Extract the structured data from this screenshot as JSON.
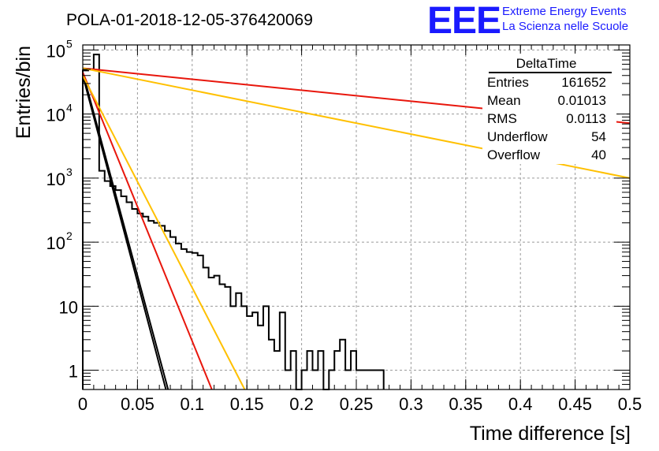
{
  "header": {
    "title": "POLA-01-2018-12-05-376420069",
    "logo": "EEE",
    "logo_line1": "Extreme Energy Events",
    "logo_line2": "La Scienza nelle Scuole"
  },
  "stats": {
    "title": "DeltaTime",
    "rows": [
      {
        "label": "Entries",
        "value": "161652"
      },
      {
        "label": "Mean",
        "value": "0.01013"
      },
      {
        "label": "RMS",
        "value": "0.0113"
      },
      {
        "label": "Underflow",
        "value": "54"
      },
      {
        "label": "Overflow",
        "value": "40"
      }
    ]
  },
  "chart_data": {
    "type": "line",
    "xlabel": "Time difference [s]",
    "ylabel": "Entries/bin",
    "xlim": [
      0,
      0.5
    ],
    "ylim": [
      0.5,
      120000
    ],
    "yscale": "log",
    "grid": true,
    "xticks": [
      "0",
      "0.05",
      "0.1",
      "0.15",
      "0.2",
      "0.25",
      "0.3",
      "0.35",
      "0.4",
      "0.45",
      "0.5"
    ],
    "yticks": [
      {
        "value": 1,
        "label": "1"
      },
      {
        "value": 10,
        "label": "10"
      },
      {
        "value": 100,
        "label": "10",
        "exp": "2"
      },
      {
        "value": 1000,
        "label": "10",
        "exp": "3"
      },
      {
        "value": 10000,
        "label": "10",
        "exp": "4"
      },
      {
        "value": 100000,
        "label": "10",
        "exp": "5"
      }
    ],
    "histogram": {
      "bin_width": 0.005,
      "color": "#000000",
      "values": [
        48000,
        50000,
        85000,
        1300,
        900,
        750,
        650,
        520,
        420,
        330,
        280,
        250,
        215,
        200,
        180,
        150,
        120,
        95,
        78,
        70,
        68,
        62,
        40,
        28,
        30,
        22,
        20,
        10,
        16,
        10,
        7,
        8,
        5,
        10,
        3,
        2,
        8,
        1,
        2,
        0.5,
        1,
        2,
        1,
        2,
        0.5,
        1,
        2,
        3,
        1,
        2,
        1,
        1,
        1,
        1,
        1
      ]
    },
    "fit_lines": [
      {
        "color": "#000000",
        "x": [
          0,
          0.078
        ],
        "y": [
          45000,
          0.5
        ]
      },
      {
        "color": "#000000",
        "x": [
          0,
          0.076
        ],
        "y": [
          40000,
          0.5
        ]
      },
      {
        "color": "#e8160c",
        "x": [
          0,
          0.118
        ],
        "y": [
          45000,
          0.5
        ]
      },
      {
        "color": "#ffc000",
        "x": [
          0,
          0.148
        ],
        "y": [
          40000,
          0.5
        ]
      },
      {
        "color": "#e8160c",
        "x": [
          0,
          0.5
        ],
        "y": [
          52000,
          7200
        ]
      },
      {
        "color": "#ffc000",
        "x": [
          0,
          0.5
        ],
        "y": [
          52000,
          1000
        ]
      }
    ]
  }
}
